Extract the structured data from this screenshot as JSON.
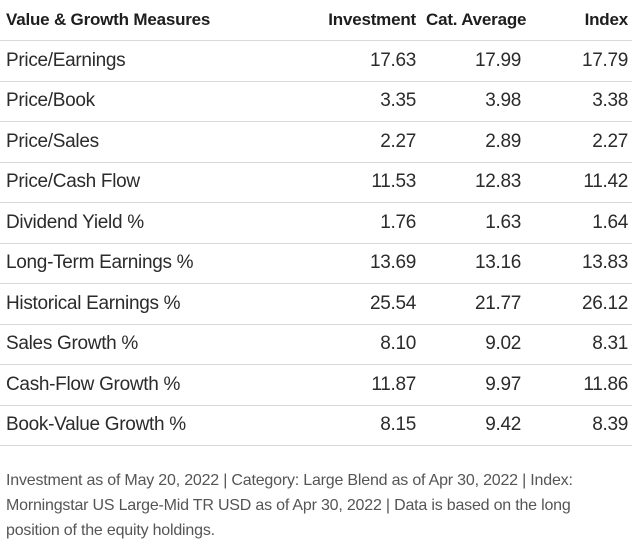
{
  "table": {
    "headers": {
      "name": "Value & Growth Measures",
      "investment": "Investment",
      "category": "Cat. Average",
      "index": "Index"
    },
    "rows": [
      {
        "name": "Price/Earnings",
        "investment": "17.63",
        "category": "17.99",
        "index": "17.79"
      },
      {
        "name": "Price/Book",
        "investment": "3.35",
        "category": "3.98",
        "index": "3.38"
      },
      {
        "name": "Price/Sales",
        "investment": "2.27",
        "category": "2.89",
        "index": "2.27"
      },
      {
        "name": "Price/Cash Flow",
        "investment": "11.53",
        "category": "12.83",
        "index": "11.42"
      },
      {
        "name": "Dividend Yield %",
        "investment": "1.76",
        "category": "1.63",
        "index": "1.64"
      },
      {
        "name": "Long-Term Earnings %",
        "investment": "13.69",
        "category": "13.16",
        "index": "13.83"
      },
      {
        "name": "Historical Earnings %",
        "investment": "25.54",
        "category": "21.77",
        "index": "26.12"
      },
      {
        "name": "Sales Growth %",
        "investment": "8.10",
        "category": "9.02",
        "index": "8.31"
      },
      {
        "name": "Cash-Flow Growth %",
        "investment": "11.87",
        "category": "9.97",
        "index": "11.86"
      },
      {
        "name": "Book-Value Growth %",
        "investment": "8.15",
        "category": "9.42",
        "index": "8.39"
      }
    ]
  },
  "footnote": "Investment as of May 20, 2022 | Category: Large Blend as of Apr 30, 2022 | Index: Morningstar US Large-Mid TR USD as of Apr 30, 2022 | Data is based on the long position of the equity holdings."
}
